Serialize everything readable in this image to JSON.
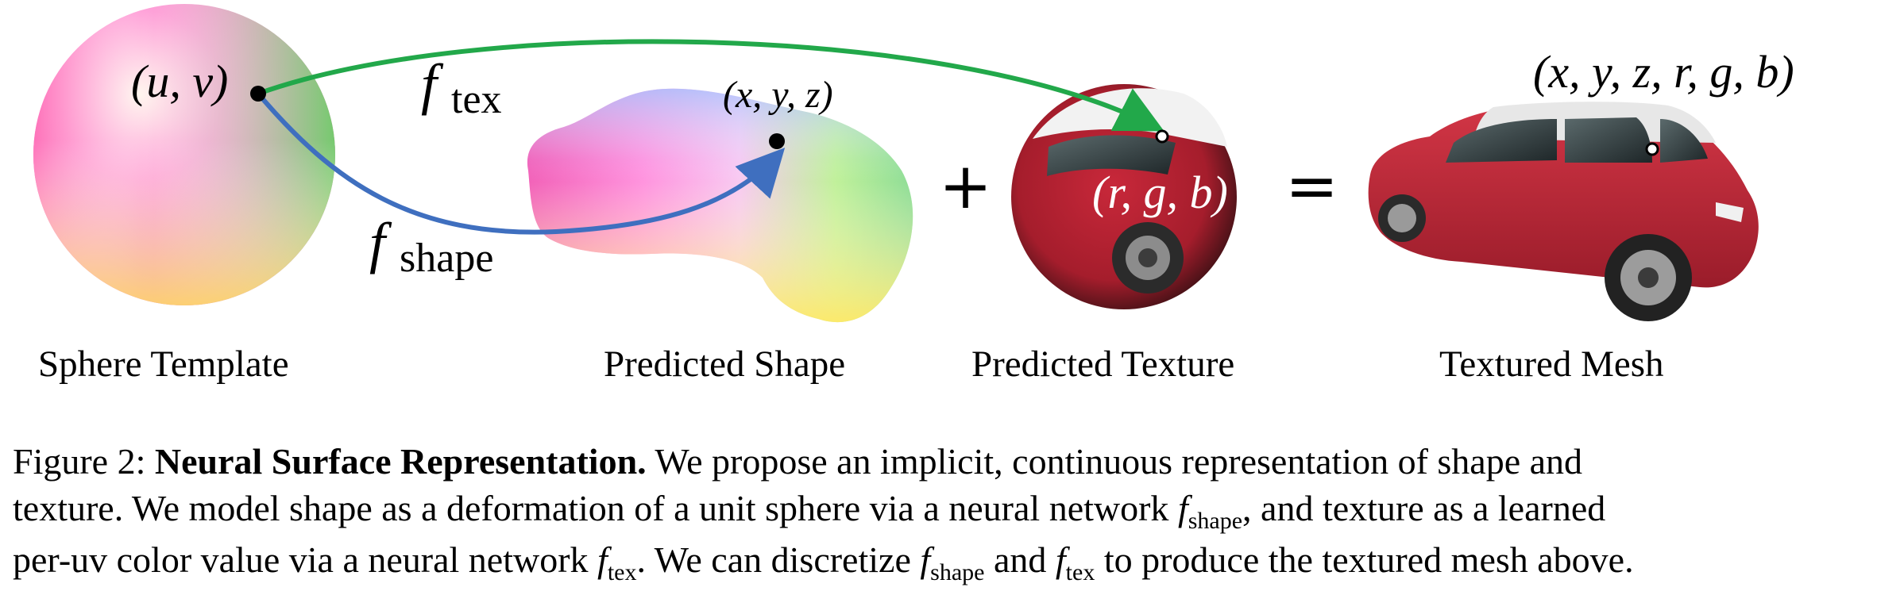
{
  "figure": {
    "arrow_labels": {
      "f_tex_base": "f",
      "f_tex_sub": "tex",
      "f_shape_base": "f",
      "f_shape_sub": "shape"
    },
    "point_labels": {
      "uv": "(u, v)",
      "xyz": "(x, y, z)",
      "rgb": "(r, g, b)",
      "xyzrgb": "(x, y, z, r, g, b)"
    },
    "operators": {
      "plus": "+",
      "equals": "="
    },
    "panel_labels": {
      "sphere": "Sphere Template",
      "shape": "Predicted Shape",
      "texture": "Predicted Texture",
      "mesh": "Textured Mesh"
    },
    "colors": {
      "f_tex_arrow": "#22a84a",
      "f_shape_arrow": "#3f6fbf",
      "car_body": "#c22a3a"
    }
  },
  "caption": {
    "figure_number": "Figure 2:",
    "bold_title": "Neural Surface Representation.",
    "line1_rest": "We propose an implicit, continuous representation of shape and",
    "line2_a": "texture. We model shape as a deformation of a unit sphere via a neural network",
    "line2_f": "f",
    "line2_sub": "shape",
    "line2_b": ", and texture as a learned",
    "line3_a": "per-uv color value via a neural network",
    "line3_f": "f",
    "line3_sub": "tex",
    "line3_b": ". We can discretize",
    "line3_f2": "f",
    "line3_sub2": "shape",
    "line3_c": "and",
    "line3_f3": "f",
    "line3_sub3": "tex",
    "line3_d": "to produce the textured mesh above."
  }
}
